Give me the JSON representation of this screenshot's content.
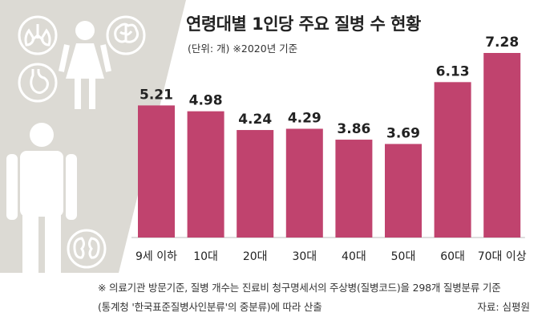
{
  "header": {
    "title": "연령대별 1인당 주요 질병 수 현황",
    "subtitle": "(단위: 개)  ※2020년 기준"
  },
  "footer": {
    "note_line1": "※ 의료기관 방문기준, 질병 개수는 진료비 청구명세서의 주상병(질병코드)을 298개 질병분류 기준",
    "note_line2": "(통계청 '한국표준질병사인분류'의 중분류)에 따라 산출",
    "source": "자료: 심평원"
  },
  "colors": {
    "bar": "#c0436e",
    "panel": "#dcdad4",
    "icon": "#ffffff",
    "text": "#222222"
  },
  "illustration": {
    "icons": [
      "lungs-icon",
      "woman-figure-icon",
      "brain-icon",
      "stomach-icon",
      "man-figure-icon",
      "kidneys-icon"
    ]
  },
  "chart_data": {
    "type": "bar",
    "title": "연령대별 1인당 주요 질병 수 현황",
    "categories": [
      "9세 이하",
      "10대",
      "20대",
      "30대",
      "40대",
      "50대",
      "60대",
      "70대 이상"
    ],
    "values": [
      5.21,
      4.98,
      4.24,
      4.29,
      3.86,
      3.69,
      6.13,
      7.28
    ],
    "value_labels": [
      "5.21",
      "4.98",
      "4.24",
      "4.29",
      "3.86",
      "3.69",
      "6.13",
      "7.28"
    ],
    "ylim": [
      0,
      7.28
    ],
    "grid": false,
    "legend": "none"
  }
}
